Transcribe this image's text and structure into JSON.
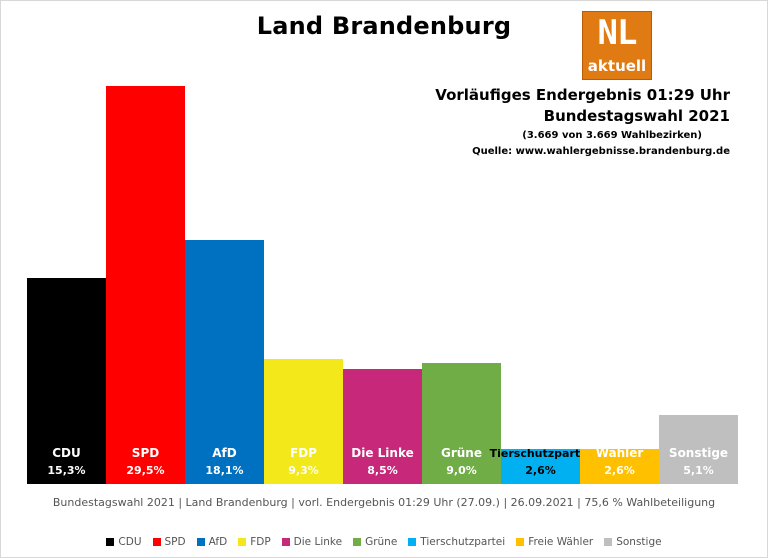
{
  "title": "Land Brandenburg",
  "logo": {
    "line1": "NL",
    "line2": "aktuell"
  },
  "info": {
    "line1": "Vorläufiges Endergebnis 01:29 Uhr",
    "line2": "Bundestagswahl 2021",
    "line3": "(3.669 von 3.669 Wahlbezirken)",
    "line4": "Quelle: www.wahlergebnisse.brandenburg.de"
  },
  "footnote": "Bundestagswahl 2021 | Land Brandenburg | vorl. Endergebnis 01:29 Uhr (27.09.) | 26.09.2021 | 75,6 % Wahlbeteiligung",
  "colors": {
    "CDU": "#000000",
    "SPD": "#ff0000",
    "AfD": "#0070c0",
    "FDP": "#f2e81a",
    "Die Linke": "#c8287a",
    "Grüne": "#70ad47",
    "Tierschutzpartei": "#00b0f0",
    "Freie Wähler": "#ffc000",
    "Sonstige": "#bfbfbf"
  },
  "chart_data": {
    "type": "bar",
    "title": "Land Brandenburg",
    "categories": [
      "CDU",
      "SPD",
      "AfD",
      "FDP",
      "Die Linke",
      "Grüne",
      "Tierschutzpartei",
      "Freie Wähler",
      "Sonstige"
    ],
    "values": [
      15.3,
      29.5,
      18.1,
      9.3,
      8.5,
      9.0,
      2.6,
      2.6,
      5.1
    ],
    "value_labels": [
      "15,3%",
      "29,5%",
      "18,1%",
      "9,3%",
      "8,5%",
      "9,0%",
      "2,6%",
      "2,6%",
      "5,1%"
    ],
    "bar_names": [
      "CDU",
      "SPD",
      "AfD",
      "FDP",
      "Die Linke",
      "Grüne",
      "Tierschutzpartei",
      "Freie\nWähler",
      "Sonstige"
    ],
    "legend": [
      "CDU",
      "SPD",
      "AfD",
      "FDP",
      "Die Linke",
      "Grüne",
      "Tierschutzpartei",
      "Freie Wähler",
      "Sonstige"
    ],
    "legend_position": "bottom",
    "grid": false,
    "ylim": [
      0,
      29.5
    ]
  }
}
